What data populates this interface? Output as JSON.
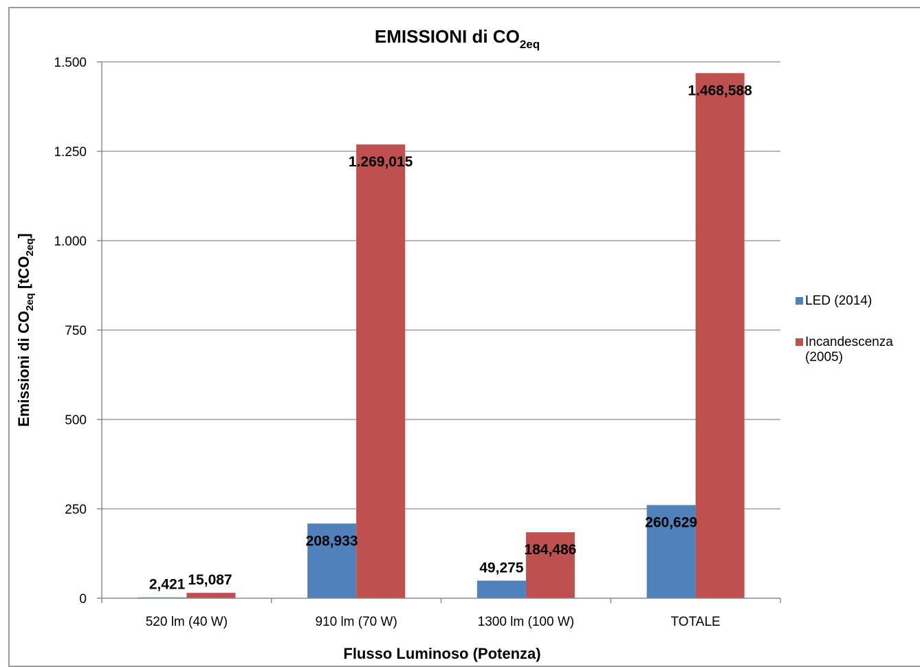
{
  "chart_data": {
    "type": "bar",
    "title_main": "EMISSIONI di CO",
    "title_sub": "2eq",
    "xlabel": "Flusso Luminoso (Potenza)",
    "ylabel_main": "Emissioni di CO",
    "ylabel_sub": "2eq",
    "ylabel_unit_open": " [tCO",
    "ylabel_unit_sub": "2eq",
    "ylabel_unit_close": "]",
    "categories": [
      "520 lm (40 W)",
      "910 lm (70 W)",
      "1300 lm (100 W)",
      "TOTALE"
    ],
    "ylim": [
      0,
      1500
    ],
    "yticks": [
      0,
      250,
      500,
      750,
      1000,
      1250,
      1500
    ],
    "ytick_labels": [
      "0",
      "250",
      "500",
      "750",
      "1.000",
      "1.250",
      "1.500"
    ],
    "grid": true,
    "legend_position": "right",
    "series": [
      {
        "name": "LED (2014)",
        "color": "#4f81bd",
        "values": [
          2.421,
          208.933,
          49.275,
          260.629
        ],
        "labels": [
          "2,421",
          "208,933",
          "49,275",
          "260,629"
        ]
      },
      {
        "name_line1": "Incandescenza",
        "name_line2": "(2005)",
        "color": "#c0504d",
        "values": [
          15.087,
          1269.015,
          184.486,
          1468.588
        ],
        "labels": [
          "15,087",
          "1.269,015",
          "184,486",
          "1.468,588"
        ]
      }
    ]
  }
}
